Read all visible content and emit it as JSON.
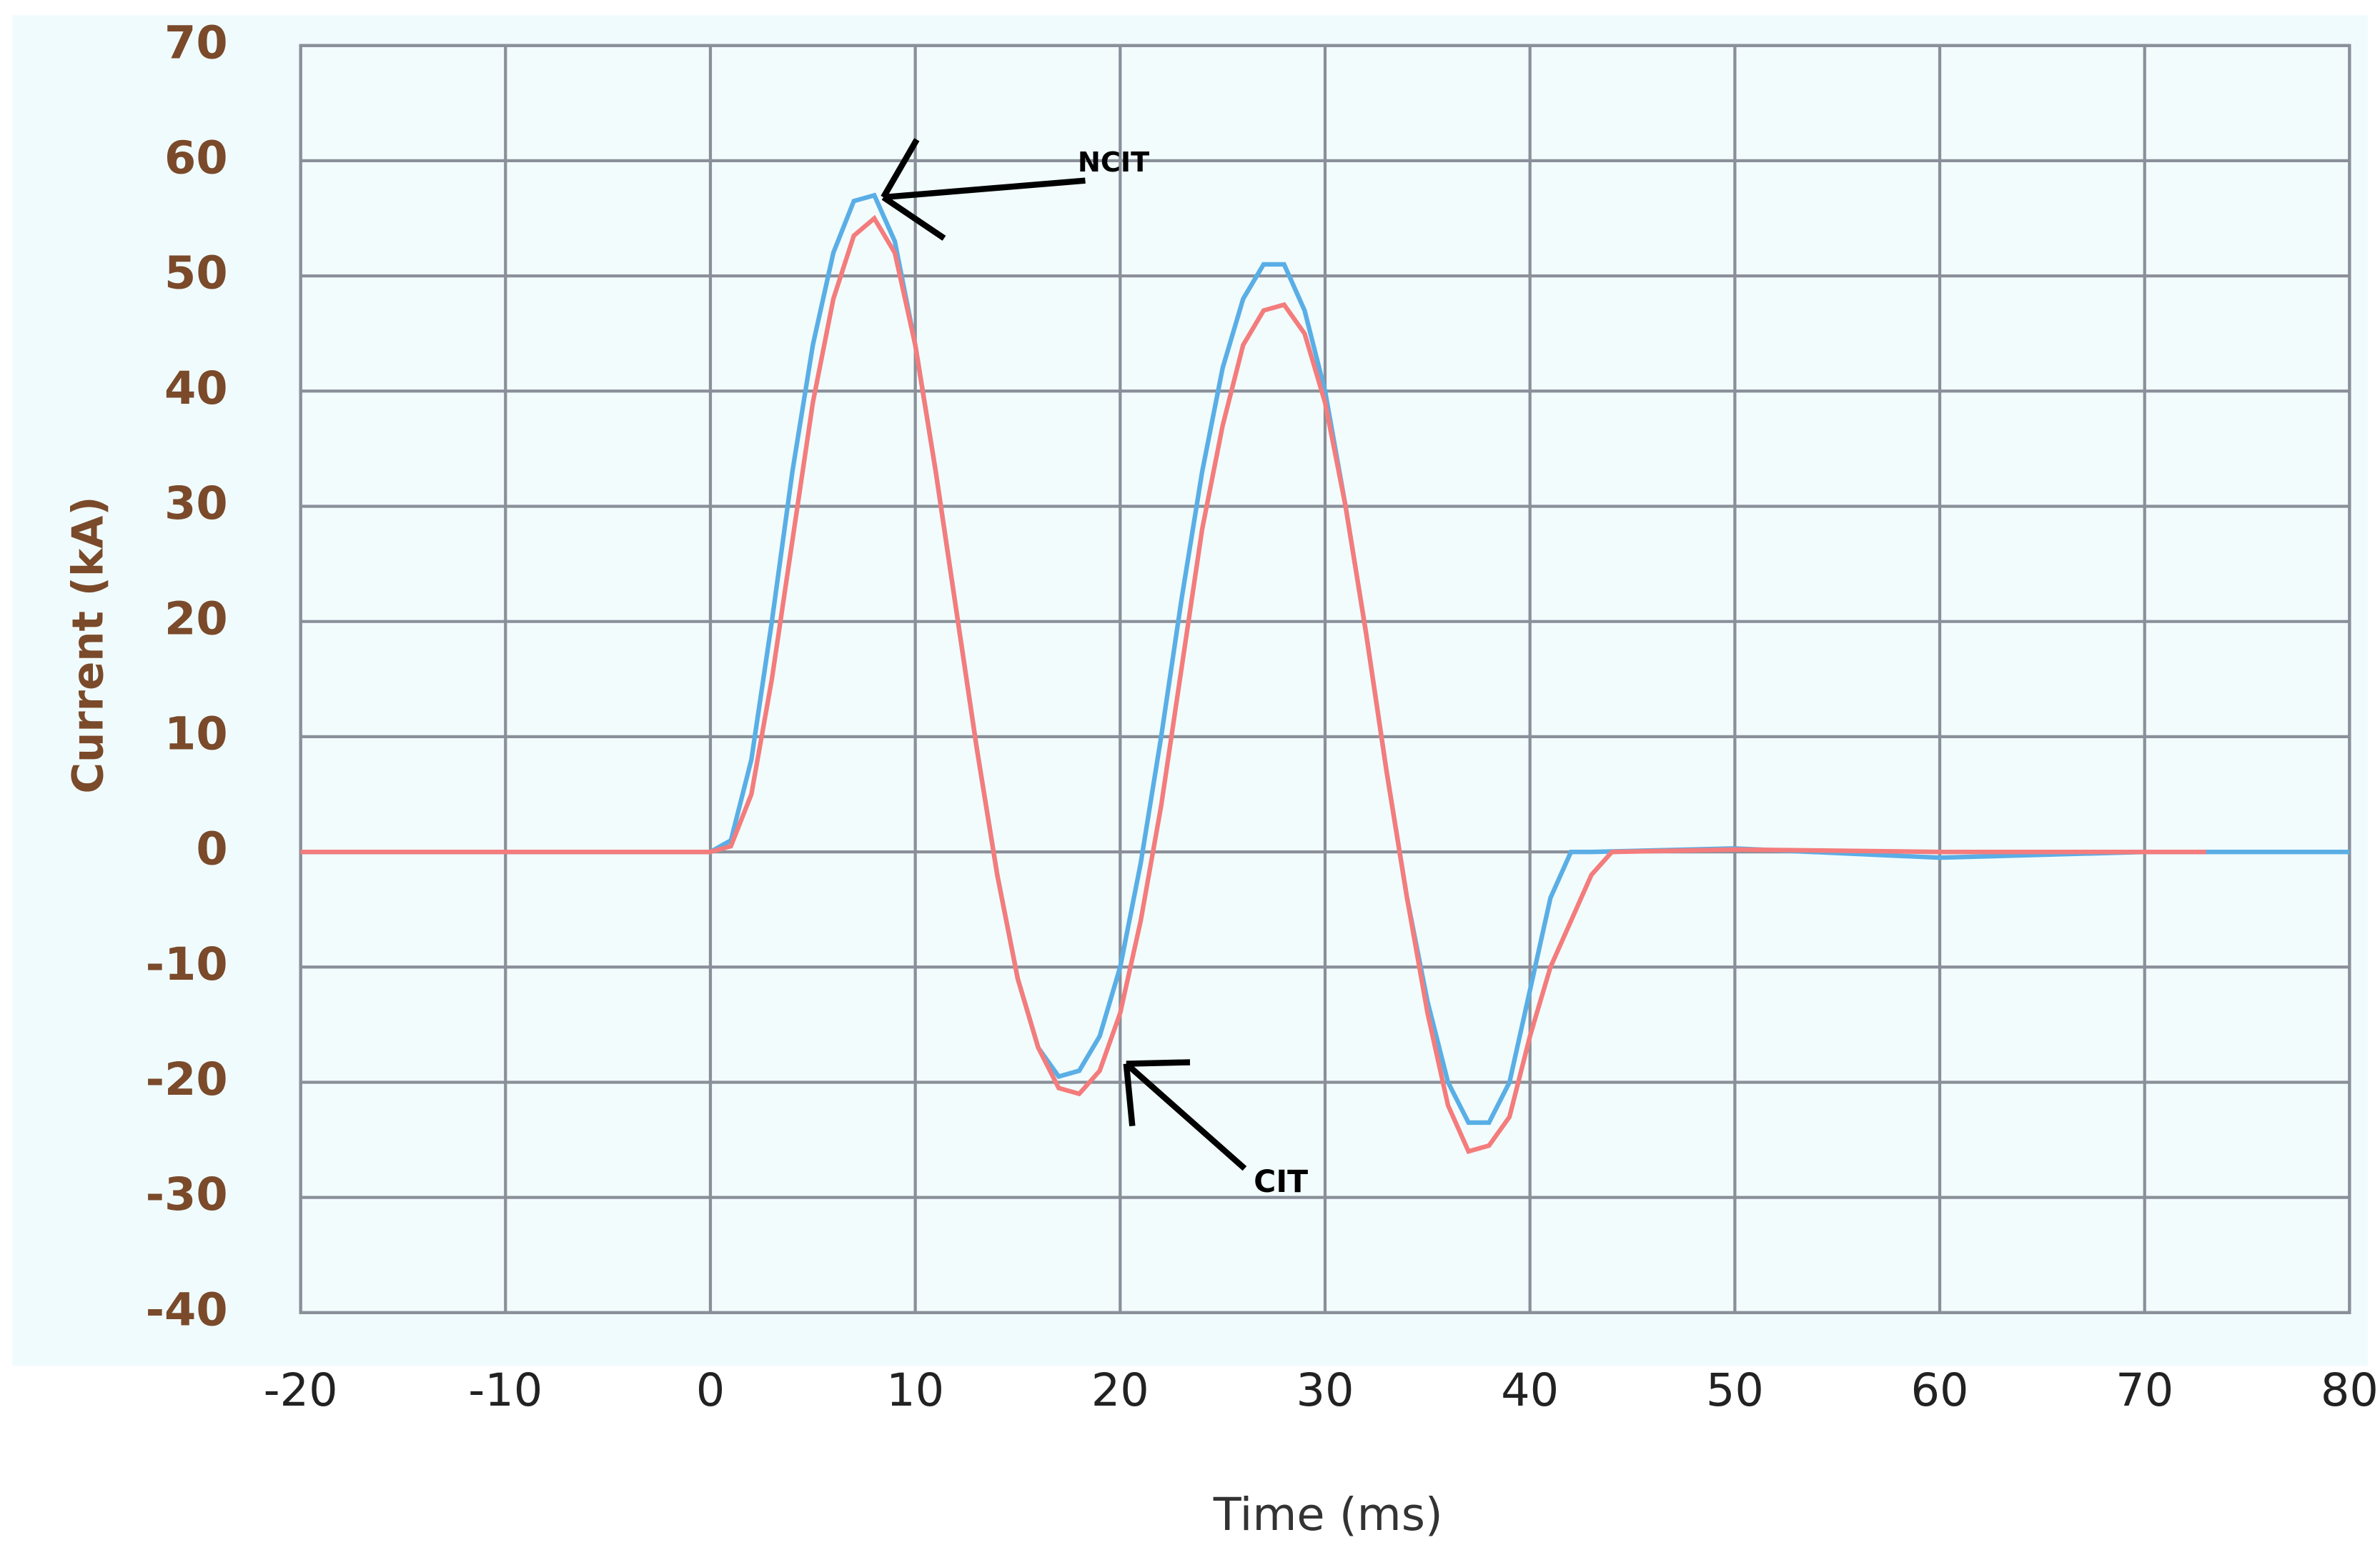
{
  "chart_data": {
    "type": "line",
    "x_label": "Time (ms)",
    "y_label": "Current (kA)",
    "xlim": [
      -20,
      80
    ],
    "ylim": [
      -40,
      70
    ],
    "xticks": [
      -20,
      -10,
      0,
      10,
      20,
      30,
      40,
      50,
      60,
      70,
      80
    ],
    "yticks": [
      -40,
      -30,
      -20,
      -10,
      0,
      10,
      20,
      30,
      40,
      50,
      60,
      70
    ],
    "grid": true,
    "series": [
      {
        "name": "NCIT",
        "color": "#5aaee6",
        "x": [
          -20,
          0,
          1,
          2,
          3,
          4,
          5,
          6,
          7,
          8,
          9,
          10,
          11,
          12,
          13,
          14,
          15,
          16,
          17,
          18,
          19,
          20,
          21,
          22,
          23,
          24,
          25,
          26,
          27,
          28,
          29,
          30,
          31,
          32,
          33,
          34,
          35,
          36,
          37,
          38,
          39,
          40,
          41,
          42,
          43,
          50,
          60,
          70,
          80
        ],
        "values": [
          0,
          0,
          1,
          8,
          20,
          33,
          44,
          52,
          56.5,
          57,
          53,
          44,
          33,
          21,
          9,
          -2,
          -11,
          -17,
          -19.5,
          -19,
          -16,
          -10,
          -1,
          10,
          22,
          33,
          42,
          48,
          51,
          51,
          47,
          40,
          30,
          19,
          7,
          -4,
          -13,
          -20,
          -23.5,
          -23.5,
          -20,
          -12,
          -4,
          0,
          0,
          0.3,
          -0.5,
          0,
          0
        ]
      },
      {
        "name": "CIT",
        "color": "#f47c7c",
        "x": [
          -20,
          0,
          1,
          2,
          3,
          4,
          5,
          6,
          7,
          8,
          9,
          10,
          11,
          12,
          13,
          14,
          15,
          16,
          17,
          18,
          19,
          20,
          21,
          22,
          23,
          24,
          25,
          26,
          27,
          28,
          29,
          30,
          31,
          32,
          33,
          34,
          35,
          36,
          37,
          38,
          39,
          40,
          41,
          42,
          43,
          44,
          50,
          60,
          73
        ],
        "values": [
          0,
          0,
          0.5,
          5,
          15,
          27,
          39,
          48,
          53.5,
          55,
          52,
          44,
          33,
          21,
          9,
          -2,
          -11,
          -17,
          -20.5,
          -21,
          -19,
          -14,
          -6,
          4,
          16,
          28,
          37,
          44,
          47,
          47.5,
          45,
          39,
          30,
          19,
          7,
          -4,
          -14,
          -22,
          -26,
          -25.5,
          -23,
          -16,
          -10,
          -6,
          -2,
          0,
          0.2,
          0,
          0
        ]
      }
    ]
  }
}
